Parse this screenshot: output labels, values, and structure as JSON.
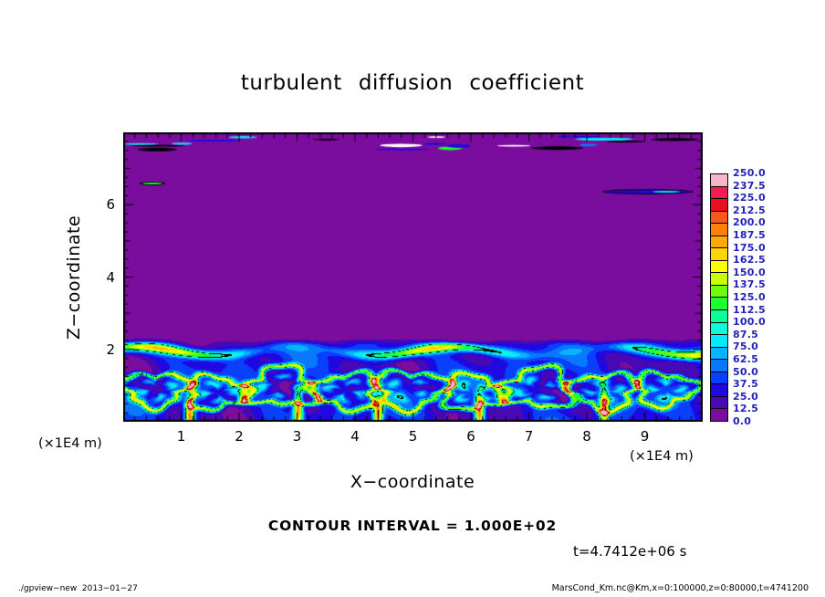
{
  "title": "turbulent diffusion coefficient",
  "plot": {
    "x_axis": {
      "label": "X−coordinate",
      "unit": "(×1E4 m)",
      "tick_labels": [
        "1",
        "2",
        "3",
        "4",
        "5",
        "6",
        "7",
        "8",
        "9"
      ],
      "range": [
        0,
        10
      ]
    },
    "z_axis": {
      "label": "Z−coordinate",
      "unit": "(×1E4 m)",
      "tick_labels": [
        "2",
        "4",
        "6"
      ],
      "range": [
        0,
        8
      ]
    }
  },
  "colorbar": {
    "labels": [
      "250.0",
      "237.5",
      "225.0",
      "212.5",
      "200.0",
      "187.5",
      "175.0",
      "162.5",
      "150.0",
      "137.5",
      "125.0",
      "112.5",
      "100.0",
      "87.5",
      "75.0",
      "62.5",
      "50.0",
      "37.5",
      "25.0",
      "12.5",
      "0.0"
    ],
    "colors_top_to_bottom": [
      "#f8b4c8",
      "#f01e50",
      "#e81020",
      "#f4581c",
      "#fd8108",
      "#fdaa08",
      "#fdd508",
      "#fdfd08",
      "#c8fd08",
      "#6efd08",
      "#1efd30",
      "#0efd9a",
      "#08fdd8",
      "#08e8fd",
      "#08b4fd",
      "#0878fd",
      "#0840fd",
      "#2008e0",
      "#4808b4",
      "#7a0d9e"
    ],
    "label_color": "#2222bb"
  },
  "annotations": {
    "contour_interval": "CONTOUR INTERVAL = 1.000E+02",
    "time_stamp": "t=4.7412e+06 s"
  },
  "footer": {
    "left": "./gpview−new  2013−01−27",
    "right": "MarsCond_Km.nc@Km,x=0:100000,z=0:80000,t=4741200"
  },
  "chart_data": {
    "type": "heatmap",
    "title": "turbulent diffusion coefficient",
    "xlabel": "X−coordinate",
    "ylabel": "Z−coordinate",
    "axis_unit": "(×1E4 m)",
    "x_range": [
      0,
      10
    ],
    "z_range": [
      0,
      8
    ],
    "x_ticks": [
      1,
      2,
      3,
      4,
      5,
      6,
      7,
      8,
      9
    ],
    "z_ticks": [
      2,
      4,
      6
    ],
    "value_levels": [
      0.0,
      12.5,
      25.0,
      37.5,
      50.0,
      62.5,
      75.0,
      87.5,
      100.0,
      112.5,
      125.0,
      137.5,
      150.0,
      162.5,
      175.0,
      187.5,
      200.0,
      212.5,
      225.0,
      237.5,
      250.0
    ],
    "value_range": [
      0.0,
      250.0
    ],
    "contour_interval": 100.0,
    "time": "t=4.7412e+06 s",
    "features": {
      "background_value": "about 0 (purple, below first contour) everywhere above z = 2 (x1E4 m)",
      "boundary_layer": "convective eddies below z = 2 (x1E4 m): dark blue vortex cores (25-75), green filaments (125-150), yellow-orange plumes (175-225), black contour lines at 100 and 200",
      "top_streaks": "thin intermittent blue/green/black/white patches just below the model top (z = 7.6-8) and an isolated blue streak near z = 6.3 at x = 8-10"
    }
  }
}
